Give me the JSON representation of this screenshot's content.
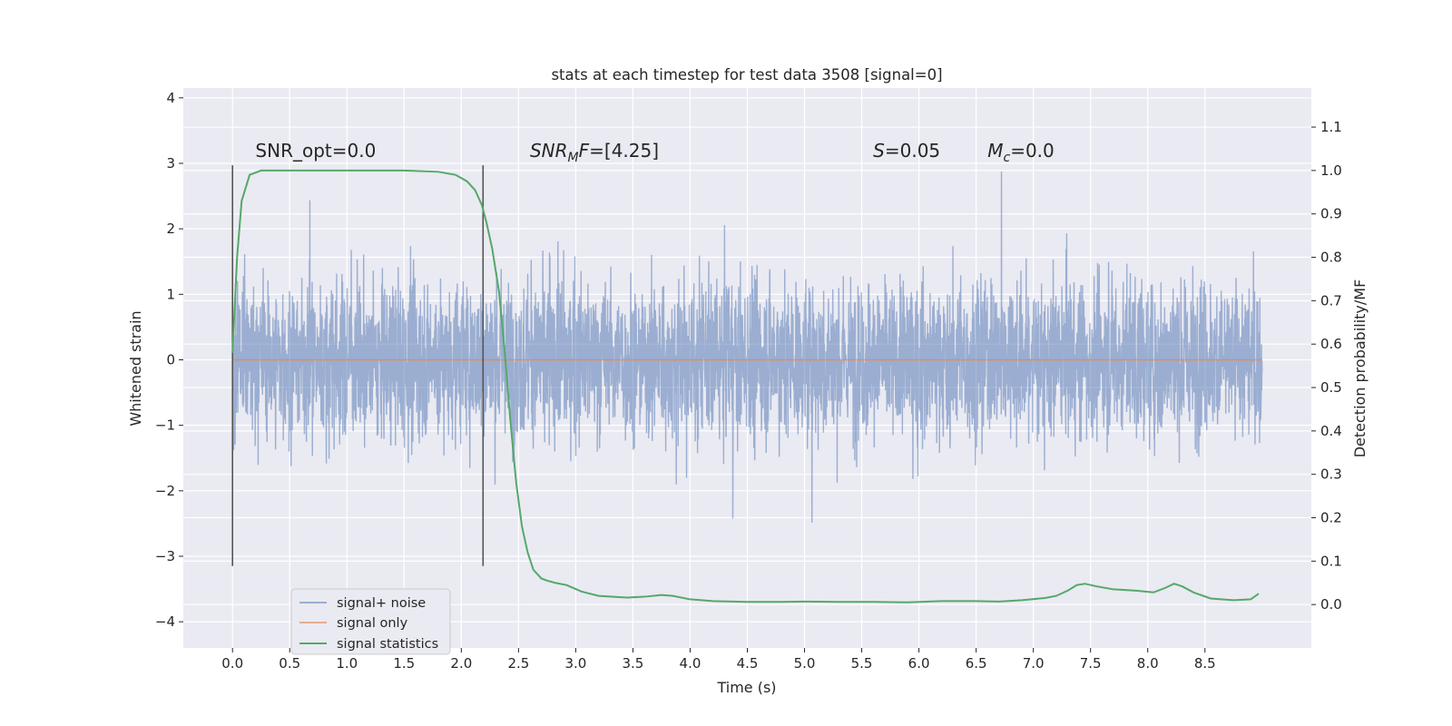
{
  "chart_data": {
    "type": "line",
    "title": "stats at each timestep for test data 3508 [signal=0]",
    "xlabel": "Time (s)",
    "ylabel": "Whitened strain",
    "y2label": "Detection probability/MF",
    "xlim": [
      -0.43,
      9.43
    ],
    "ylim": [
      -4.4,
      4.15
    ],
    "y2lim": [
      -0.1,
      1.19
    ],
    "xticks": [
      0.0,
      0.5,
      1.0,
      1.5,
      2.0,
      2.5,
      3.0,
      3.5,
      4.0,
      4.5,
      5.0,
      5.5,
      6.0,
      6.5,
      7.0,
      7.5,
      8.0,
      8.5
    ],
    "xtick_labels": [
      "0.0",
      "0.5",
      "1.0",
      "1.5",
      "2.0",
      "2.5",
      "3.0",
      "3.5",
      "4.0",
      "4.5",
      "5.0",
      "5.5",
      "6.0",
      "6.5",
      "7.0",
      "7.5",
      "8.0",
      "8.5"
    ],
    "yticks": [
      4,
      3,
      2,
      1,
      0,
      -1,
      -2,
      -3,
      -4
    ],
    "ytick_labels": [
      "4",
      "3",
      "2",
      "1",
      "0",
      "−1",
      "−2",
      "−3",
      "−4"
    ],
    "y2ticks": [
      1.1,
      1.0,
      0.9,
      0.8,
      0.7,
      0.6,
      0.5,
      0.4,
      0.3,
      0.2,
      0.1,
      0.0
    ],
    "y2tick_labels": [
      "1.1",
      "1.0",
      "0.9",
      "0.8",
      "0.7",
      "0.6",
      "0.5",
      "0.4",
      "0.3",
      "0.2",
      "0.1",
      "0.0"
    ],
    "grid": true,
    "legend_position": "lower-left",
    "colors": {
      "background": "#eaeaf2",
      "grid": "#ffffff",
      "noise": "#4c72b0",
      "signal_only": "#dd8452",
      "statistics": "#55a868",
      "markers": "#555555"
    },
    "series": [
      {
        "name": "signal+ noise",
        "axis": "left",
        "description_range": [
          -3.8,
          3.8
        ],
        "t_start": 0.0,
        "t_end": 9.0
      },
      {
        "name": "signal only",
        "axis": "left",
        "x": [
          0.0,
          9.0
        ],
        "y": [
          0.0,
          0.0
        ]
      },
      {
        "name": "signal statistics",
        "axis": "right",
        "x": [
          0.0,
          0.04,
          0.08,
          0.15,
          0.25,
          0.5,
          1.0,
          1.5,
          1.8,
          1.95,
          2.05,
          2.12,
          2.18,
          2.22,
          2.27,
          2.33,
          2.38,
          2.43,
          2.48,
          2.53,
          2.58,
          2.63,
          2.7,
          2.75,
          2.82,
          2.92,
          3.05,
          3.2,
          3.45,
          3.6,
          3.75,
          3.85,
          4.0,
          4.2,
          4.5,
          4.8,
          5.0,
          5.3,
          5.6,
          5.9,
          6.2,
          6.5,
          6.7,
          6.9,
          7.1,
          7.2,
          7.3,
          7.38,
          7.45,
          7.55,
          7.7,
          7.9,
          8.05,
          8.15,
          8.23,
          8.3,
          8.4,
          8.55,
          8.75,
          8.9,
          8.97
        ],
        "y": [
          0.58,
          0.8,
          0.93,
          0.99,
          1.0,
          1.0,
          1.0,
          1.0,
          0.997,
          0.99,
          0.975,
          0.955,
          0.92,
          0.88,
          0.82,
          0.72,
          0.58,
          0.42,
          0.28,
          0.18,
          0.12,
          0.08,
          0.06,
          0.055,
          0.05,
          0.045,
          0.03,
          0.02,
          0.016,
          0.018,
          0.022,
          0.02,
          0.012,
          0.008,
          0.006,
          0.006,
          0.007,
          0.006,
          0.006,
          0.005,
          0.008,
          0.008,
          0.007,
          0.01,
          0.015,
          0.02,
          0.032,
          0.045,
          0.048,
          0.042,
          0.035,
          0.032,
          0.028,
          0.038,
          0.048,
          0.042,
          0.028,
          0.014,
          0.01,
          0.012,
          0.025
        ]
      }
    ],
    "vlines": [
      {
        "x": 0.0,
        "ymin": -3.15,
        "ymax": 2.97
      },
      {
        "x": 2.19,
        "ymin": -3.15,
        "ymax": 2.97
      }
    ],
    "annotations": [
      {
        "id": "snr-opt",
        "x": 0.2,
        "y": 3.1,
        "text": "SNR_opt=0.0"
      },
      {
        "id": "snr-mf",
        "x": 2.6,
        "y": 3.1,
        "main": "SNR",
        "sub": "M",
        "tail": "F=[4.25]"
      },
      {
        "id": "s-value",
        "x": 5.6,
        "y": 3.1,
        "main": "S",
        "tail": "=0.05"
      },
      {
        "id": "mc-value",
        "x": 6.6,
        "y": 3.1,
        "main": "M",
        "sub": "c",
        "tail": "=0.0"
      }
    ]
  }
}
